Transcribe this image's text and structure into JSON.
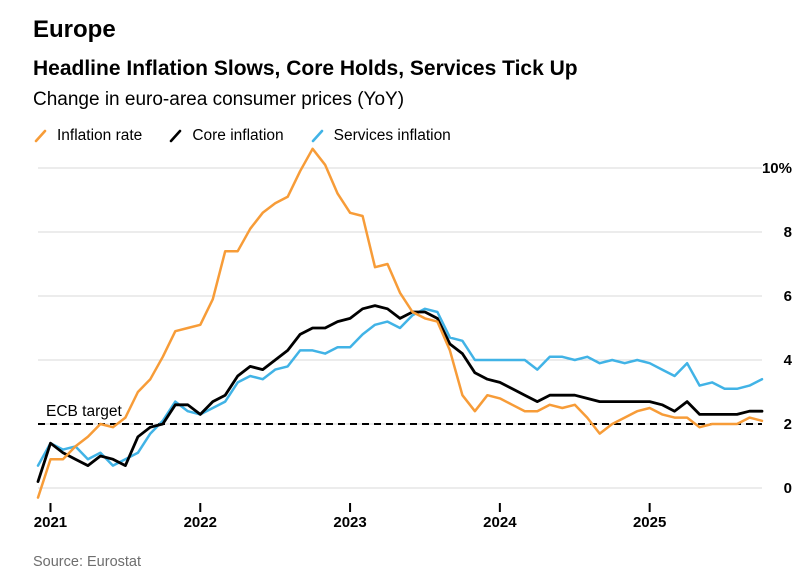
{
  "page": {
    "kicker": "Europe",
    "title": "Headline Inflation Slows, Core Holds, Services Tick Up",
    "subtitle": "Change in euro-area consumer prices (YoY)",
    "source": "Source: Eurostat"
  },
  "legend": [
    {
      "label": "Inflation rate",
      "color": "#F79C38"
    },
    {
      "label": "Core inflation",
      "color": "#000000"
    },
    {
      "label": "Services inflation",
      "color": "#41B3E6"
    }
  ],
  "chart_data": {
    "type": "line",
    "title": "Headline Inflation Slows, Core Holds, Services Tick Up",
    "subtitle": "Change in euro-area consumer prices (YoY)",
    "x_unit": "month",
    "x_start": "2020-12",
    "x_end": "2025-10",
    "grid": "horizontal",
    "legend_position": "top",
    "ylim": [
      -0.7,
      10.3
    ],
    "yticks": [
      {
        "value": 0,
        "label": "0"
      },
      {
        "value": 2,
        "label": "2"
      },
      {
        "value": 4,
        "label": "4"
      },
      {
        "value": 6,
        "label": "6"
      },
      {
        "value": 8,
        "label": "8"
      },
      {
        "value": 10,
        "label": "10%"
      }
    ],
    "xticks": [
      {
        "label": "2021",
        "month_index": 1
      },
      {
        "label": "2022",
        "month_index": 13
      },
      {
        "label": "2023",
        "month_index": 25
      },
      {
        "label": "2024",
        "month_index": 37
      },
      {
        "label": "2025",
        "month_index": 49
      }
    ],
    "target_line": {
      "label": "ECB target",
      "value": 2.0,
      "style": "dashed",
      "color": "#000000"
    },
    "series": [
      {
        "name": "Inflation rate",
        "color": "#F79C38",
        "values": [
          -0.3,
          0.9,
          0.9,
          1.3,
          1.6,
          2.0,
          1.9,
          2.2,
          3.0,
          3.4,
          4.1,
          4.9,
          5.0,
          5.1,
          5.9,
          7.4,
          7.4,
          8.1,
          8.6,
          8.9,
          9.1,
          9.9,
          10.6,
          10.1,
          9.2,
          8.6,
          8.5,
          6.9,
          7.0,
          6.1,
          5.5,
          5.3,
          5.2,
          4.3,
          2.9,
          2.4,
          2.9,
          2.8,
          2.6,
          2.4,
          2.4,
          2.6,
          2.5,
          2.6,
          2.2,
          1.7,
          2.0,
          2.2,
          2.4,
          2.5,
          2.3,
          2.2,
          2.2,
          1.9,
          2.0,
          2.0,
          2.0,
          2.2,
          2.1
        ]
      },
      {
        "name": "Core inflation",
        "color": "#000000",
        "values": [
          0.2,
          1.4,
          1.1,
          0.9,
          0.7,
          1.0,
          0.9,
          0.7,
          1.6,
          1.9,
          2.0,
          2.6,
          2.6,
          2.3,
          2.7,
          2.9,
          3.5,
          3.8,
          3.7,
          4.0,
          4.3,
          4.8,
          5.0,
          5.0,
          5.2,
          5.3,
          5.6,
          5.7,
          5.6,
          5.3,
          5.5,
          5.5,
          5.3,
          4.5,
          4.2,
          3.6,
          3.4,
          3.3,
          3.1,
          2.9,
          2.7,
          2.9,
          2.9,
          2.9,
          2.8,
          2.7,
          2.7,
          2.7,
          2.7,
          2.7,
          2.6,
          2.4,
          2.7,
          2.3,
          2.3,
          2.3,
          2.3,
          2.4,
          2.4
        ]
      },
      {
        "name": "Services inflation",
        "color": "#41B3E6",
        "values": [
          0.7,
          1.4,
          1.2,
          1.3,
          0.9,
          1.1,
          0.7,
          0.9,
          1.1,
          1.7,
          2.1,
          2.7,
          2.4,
          2.3,
          2.5,
          2.7,
          3.3,
          3.5,
          3.4,
          3.7,
          3.8,
          4.3,
          4.3,
          4.2,
          4.4,
          4.4,
          4.8,
          5.1,
          5.2,
          5.0,
          5.4,
          5.6,
          5.5,
          4.7,
          4.6,
          4.0,
          4.0,
          4.0,
          4.0,
          4.0,
          3.7,
          4.1,
          4.1,
          4.0,
          4.1,
          3.9,
          4.0,
          3.9,
          4.0,
          3.9,
          3.7,
          3.5,
          3.9,
          3.2,
          3.3,
          3.1,
          3.1,
          3.2,
          3.4
        ]
      }
    ]
  }
}
